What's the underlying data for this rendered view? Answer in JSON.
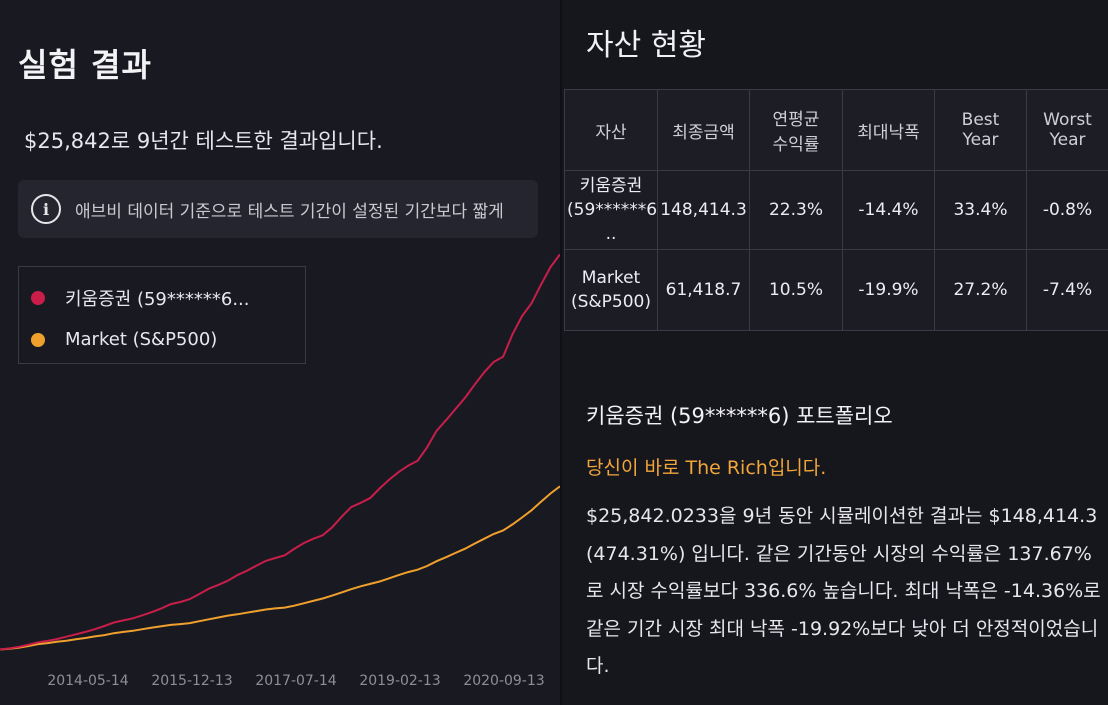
{
  "left": {
    "title": "실험 결과",
    "summary": "$25,842로 9년간 테스트한 결과입니다.",
    "notice": "애브비 데이터 기준으로 테스트 기간이 설정된 기간보다 짧게",
    "notice_icon": "info-icon",
    "legend": [
      {
        "label": "키움증권 (59******6...",
        "color": "#c81e49"
      },
      {
        "label": "Market (S&P500)",
        "color": "#f0a02c"
      }
    ]
  },
  "chart_data": {
    "type": "line",
    "x_tick_labels": [
      "2014-05-14",
      "2015-12-13",
      "2017-07-14",
      "2019-02-13",
      "2020-09-13"
    ],
    "series": [
      {
        "name": "키움증권 (59******6...",
        "color": "#c81e49",
        "values": [
          0.17,
          0.6,
          1.2,
          2.0,
          2.9,
          3.4,
          4.1,
          5.0,
          5.9,
          6.8,
          7.8,
          9.0,
          10.3,
          11.1,
          11.9,
          13.0,
          14.2,
          15.6,
          17.2,
          18.0,
          19.1,
          21.0,
          23.0,
          24.4,
          26.0,
          28.1,
          29.7,
          31.6,
          33.4,
          34.5,
          35.5,
          37.9,
          40.1,
          41.7,
          43.0,
          46.0,
          50.0,
          53.6,
          55.2,
          57.0,
          60.6,
          63.9,
          66.7,
          69.1,
          71.0,
          76.0,
          82.2,
          86.2,
          90.4,
          94.6,
          99.5,
          104.1,
          108.0,
          110.0,
          118.4,
          125.2,
          130.0,
          137.0,
          143.6,
          148.4
        ]
      },
      {
        "name": "Market (S&P500)",
        "color": "#f0a02c",
        "values": [
          0.17,
          0.5,
          0.9,
          1.5,
          2.2,
          2.6,
          3.1,
          3.5,
          4.0,
          4.5,
          5.1,
          5.6,
          6.3,
          6.8,
          7.2,
          7.8,
          8.4,
          8.9,
          9.4,
          9.7,
          10.1,
          10.8,
          11.5,
          12.2,
          12.9,
          13.4,
          14.0,
          14.6,
          15.2,
          15.6,
          15.9,
          16.6,
          17.5,
          18.4,
          19.3,
          20.4,
          21.6,
          22.8,
          23.9,
          24.8,
          25.7,
          26.9,
          28.1,
          29.2,
          30.1,
          31.5,
          33.3,
          34.8,
          36.4,
          38.0,
          39.9,
          41.7,
          43.5,
          44.8,
          47.1,
          49.7,
          52.4,
          55.6,
          58.7,
          61.4
        ]
      }
    ]
  },
  "right": {
    "title": "자산 현황",
    "table": {
      "headers": [
        "자산",
        "최종금액",
        "연평균\n수익률",
        "최대낙폭",
        "Best\nYear",
        "Worst\nYear"
      ],
      "rows": [
        [
          "키움증권\n(59******6.\n..",
          "148,414.3",
          "22.3%",
          "-14.4%",
          "33.4%",
          "-0.8%"
        ],
        [
          "Market\n(S&P500)",
          "61,418.7",
          "10.5%",
          "-19.9%",
          "27.2%",
          "-7.4%"
        ]
      ]
    },
    "portfolio_title": "키움증권 (59******6) 포트폴리오",
    "rich_text": "당신이 바로 The Rich입니다.",
    "description": "$25,842.0233을 9년 동안 시뮬레이션한 결과는 $148,414.3 (474.31%) 입니다. 같은 기간동안 시장의 수익률은 137.67%로 시장 수익률보다 336.6% 높습니다. 최대 낙폭은 -14.36%로 같은 기간 시장 최대 낙폭 -19.92%보다 낮아 더 안정적이었습니다."
  }
}
